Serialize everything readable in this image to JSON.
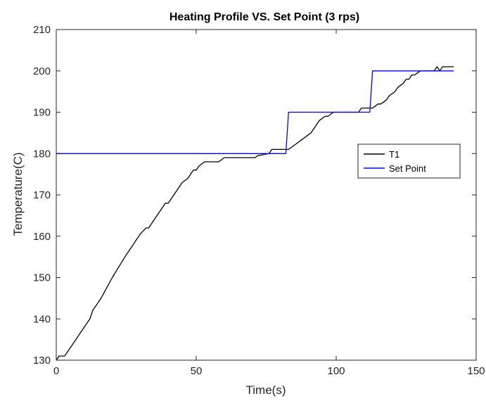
{
  "chart_data": {
    "type": "line",
    "title": "Heating Profile VS. Set Point (3 rps)",
    "xlabel": "Time(s)",
    "ylabel": "Temperature(C)",
    "xlim": [
      0,
      150
    ],
    "ylim": [
      130,
      210
    ],
    "xticks": [
      0,
      50,
      100,
      150
    ],
    "yticks": [
      130,
      140,
      150,
      160,
      170,
      180,
      190,
      200,
      210
    ],
    "xtick_labels": [
      "0",
      "50",
      "100",
      "150"
    ],
    "ytick_labels": [
      "130",
      "140",
      "150",
      "160",
      "170",
      "180",
      "190",
      "200",
      "210"
    ],
    "grid": false,
    "legend_position": "right",
    "series": [
      {
        "name": "T1",
        "color": "#000000",
        "x": [
          0,
          1,
          2,
          3,
          5,
          7,
          8,
          10,
          12,
          13,
          16,
          20,
          25,
          30,
          32,
          33,
          35,
          38,
          39,
          40,
          42,
          44,
          45,
          47,
          48,
          49,
          50,
          51,
          52,
          53,
          54,
          58,
          59,
          60,
          64,
          70,
          71,
          72,
          76,
          77,
          80,
          81,
          82,
          83,
          84,
          85,
          86,
          87,
          88,
          89,
          90,
          91,
          92,
          93,
          94,
          95,
          96,
          97,
          98,
          99,
          100,
          104,
          106,
          108,
          109,
          110,
          112,
          113,
          114,
          115,
          116,
          117,
          118,
          119,
          120,
          121,
          122,
          123,
          124,
          125,
          126,
          127,
          128,
          130,
          132,
          134,
          135,
          136,
          137,
          138,
          140,
          142
        ],
        "y": [
          130,
          131,
          131,
          131,
          133,
          135,
          136,
          138,
          140,
          142,
          145,
          150,
          155.5,
          160.5,
          162,
          162,
          164,
          167,
          168,
          168,
          170,
          172,
          173,
          174,
          175,
          176,
          176,
          177,
          177.5,
          178,
          178,
          178,
          178.5,
          179,
          179,
          179,
          179,
          179.5,
          180,
          181,
          181,
          181,
          181,
          181,
          181.5,
          182,
          182.5,
          183,
          183.5,
          184,
          184.5,
          185,
          186,
          187,
          188,
          188.5,
          189,
          189,
          189.5,
          190,
          190,
          190,
          190,
          190,
          191,
          191,
          191,
          191,
          191.5,
          192,
          192,
          192.5,
          193,
          194,
          194.5,
          195,
          196,
          196.5,
          197,
          198,
          198,
          199,
          199,
          200,
          200,
          200,
          200,
          201,
          200,
          201,
          201,
          201
        ]
      },
      {
        "name": "Set Point",
        "color": "#0000ff",
        "x": [
          0,
          82,
          83,
          112,
          113,
          142
        ],
        "y": [
          180,
          180,
          190,
          190,
          200,
          200
        ]
      }
    ]
  }
}
